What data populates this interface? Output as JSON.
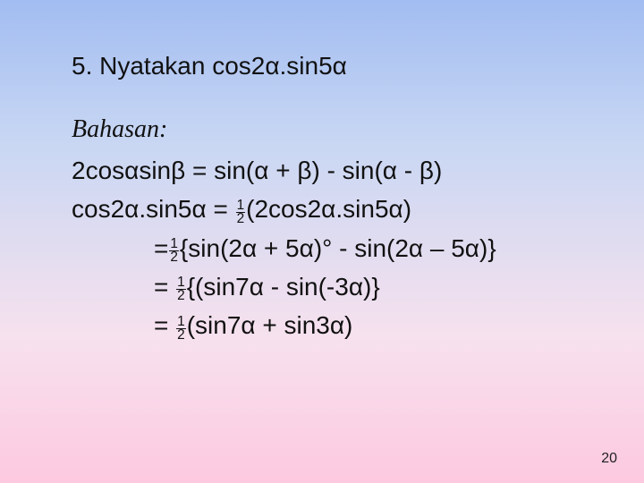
{
  "slide": {
    "background_gradient": [
      "#a2bdf2",
      "#c9d7f3",
      "#f7e1ee",
      "#fdc9e0"
    ],
    "text_color": "#111111",
    "body_fontsize_pt": 21,
    "heading_fontstyle": "italic",
    "page_number": "20",
    "page_number_fontsize_pt": 12,
    "problem_line": "5. Nyatakan cos2α.sin5α",
    "heading": "Bahasan:",
    "lines": {
      "l1": "2cosαsinβ = sin(α + β) - sin(α - β)",
      "l2a": "cos2α.sin5α = ",
      "l2b": "(2cos2α.sin5α)",
      "l3a": "=",
      "l3b": "{sin(2α + 5α)° - sin(2α – 5α)}",
      "l4a": "= ",
      "l4b": "{(sin7α - sin(-3α)}",
      "l5a": "= ",
      "l5b": "(sin7α + sin3α)"
    }
  }
}
